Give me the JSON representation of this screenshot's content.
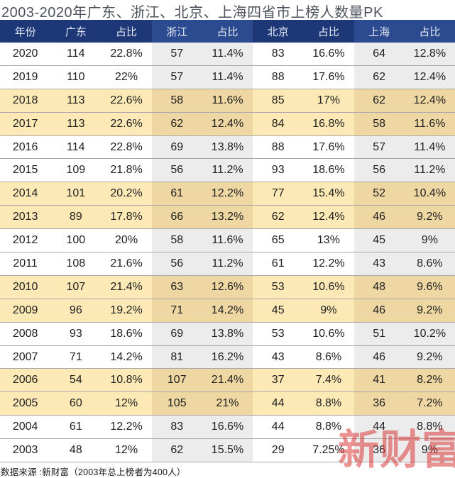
{
  "title": "2003-2020年广东、浙江、北京、上海四省市上榜人数量PK",
  "source_note": "数据来源 :新财富（2003年总上榜者为400人）",
  "watermark_text": "新财富",
  "colors": {
    "header_dark": "#1e3877",
    "header_light": "#2b4a8f",
    "row_white": "#ffffff",
    "row_white_shaded": "#ececec",
    "row_yellow": "#fce9b6",
    "row_yellow_shaded": "#eed7a2",
    "row_border": "#a9a9a9",
    "title_text": "#4e525c",
    "header_text": "#e4eaf6",
    "body_text": "#1f1f1f",
    "watermark_red": "#db3b3b"
  },
  "chart_data": {
    "type": "table",
    "title": "2003-2020年广东、浙江、北京、上海四省市上榜人数量PK",
    "columns": [
      "年份",
      "广东",
      "占比",
      "浙江",
      "占比",
      "北京",
      "占比",
      "上海",
      "占比"
    ],
    "shaded_columns": [
      3,
      4,
      7,
      8
    ],
    "rows": [
      [
        "2020",
        "114",
        "22.8%",
        "57",
        "11.4%",
        "83",
        "16.6%",
        "64",
        "12.8%"
      ],
      [
        "2019",
        "110",
        "22%",
        "57",
        "11.4%",
        "88",
        "17.6%",
        "62",
        "12.4%"
      ],
      [
        "2018",
        "113",
        "22.6%",
        "58",
        "11.6%",
        "85",
        "17%",
        "62",
        "12.4%"
      ],
      [
        "2017",
        "113",
        "22.6%",
        "62",
        "12.4%",
        "84",
        "16.8%",
        "58",
        "11.6%"
      ],
      [
        "2016",
        "114",
        "22.8%",
        "69",
        "13.8%",
        "88",
        "17.6%",
        "57",
        "11.4%"
      ],
      [
        "2015",
        "109",
        "21.8%",
        "56",
        "11.2%",
        "93",
        "18.6%",
        "56",
        "11.2%"
      ],
      [
        "2014",
        "101",
        "20.2%",
        "61",
        "12.2%",
        "77",
        "15.4%",
        "52",
        "10.4%"
      ],
      [
        "2013",
        "89",
        "17.8%",
        "66",
        "13.2%",
        "62",
        "12.4%",
        "46",
        "9.2%"
      ],
      [
        "2012",
        "100",
        "20%",
        "58",
        "11.6%",
        "65",
        "13%",
        "45",
        "9%"
      ],
      [
        "2011",
        "108",
        "21.6%",
        "56",
        "11.2%",
        "61",
        "12.2%",
        "43",
        "8.6%"
      ],
      [
        "2010",
        "107",
        "21.4%",
        "63",
        "12.6%",
        "53",
        "10.6%",
        "48",
        "9.6%"
      ],
      [
        "2009",
        "96",
        "19.2%",
        "71",
        "14.2%",
        "45",
        "9%",
        "46",
        "9.2%"
      ],
      [
        "2008",
        "93",
        "18.6%",
        "69",
        "13.8%",
        "53",
        "10.6%",
        "51",
        "10.2%"
      ],
      [
        "2007",
        "71",
        "14.2%",
        "81",
        "16.2%",
        "43",
        "8.6%",
        "46",
        "9.2%"
      ],
      [
        "2006",
        "54",
        "10.8%",
        "107",
        "21.4%",
        "37",
        "7.4%",
        "41",
        "8.2%"
      ],
      [
        "2005",
        "60",
        "12%",
        "105",
        "21%",
        "44",
        "8.8%",
        "36",
        "7.2%"
      ],
      [
        "2004",
        "61",
        "12.2%",
        "83",
        "16.6%",
        "44",
        "8.8%",
        "44",
        "8.8%"
      ],
      [
        "2003",
        "48",
        "12%",
        "62",
        "15.5%",
        "29",
        "7.25%",
        "36",
        "9%"
      ]
    ]
  }
}
